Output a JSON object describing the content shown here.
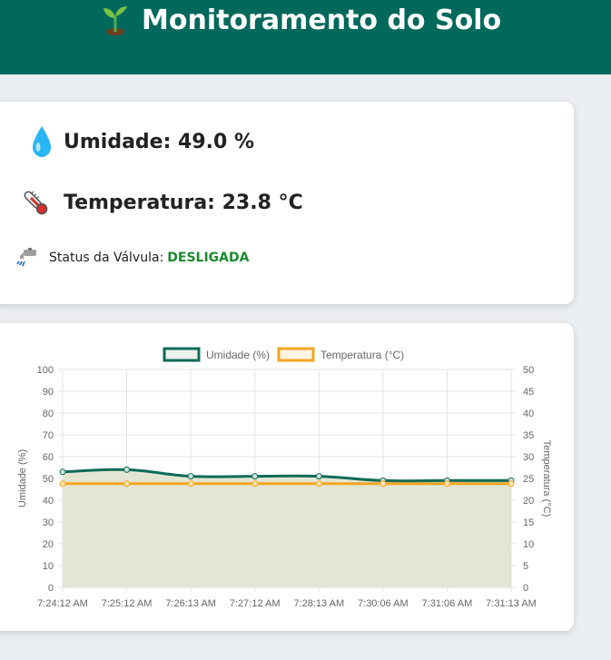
{
  "header": {
    "title": "Monitoramento do Solo",
    "icon": "seedling-icon"
  },
  "status": {
    "umidade_text": "Umidade: 49.0 %",
    "temperatura_text": "Temperatura: 23.8 °C",
    "valve_label": "Status da Válvula:",
    "valve_value": "DESLIGADA",
    "valve_color": "#1b8a2e",
    "icons": {
      "umidade": "water-drop-icon",
      "temperatura": "thermometer-icon",
      "valvula": "faucet-icon"
    }
  },
  "colors": {
    "header_bg": "#00695c",
    "umidade_line": "#0f6b57",
    "umidade_fill": "#e3e6d3",
    "temperatura_line": "#f5a623"
  },
  "chart_data": {
    "type": "line",
    "x": [
      "7:24:12 AM",
      "7:25:12 AM",
      "7:26:13 AM",
      "7:27:12 AM",
      "7:28:13 AM",
      "7:30:06 AM",
      "7:31:06 AM",
      "7:31:13 AM"
    ],
    "series": [
      {
        "name": "Umidade (%)",
        "axis": "left",
        "values": [
          53,
          54,
          51,
          51,
          51,
          49,
          49,
          49
        ]
      },
      {
        "name": "Temperatura (°C)",
        "axis": "right",
        "values": [
          23.8,
          23.8,
          23.8,
          23.8,
          23.8,
          23.8,
          23.8,
          23.8
        ]
      }
    ],
    "ylabel": "Umidade (%)",
    "y2label": "Temperatura (°C)",
    "ylim": [
      0,
      100
    ],
    "y2lim": [
      0,
      50
    ],
    "yticks": [
      0,
      10,
      20,
      30,
      40,
      50,
      60,
      70,
      80,
      90,
      100
    ],
    "y2ticks": [
      0,
      5,
      10,
      15,
      20,
      25,
      30,
      35,
      40,
      45,
      50
    ],
    "grid": true,
    "legend_position": "top"
  }
}
